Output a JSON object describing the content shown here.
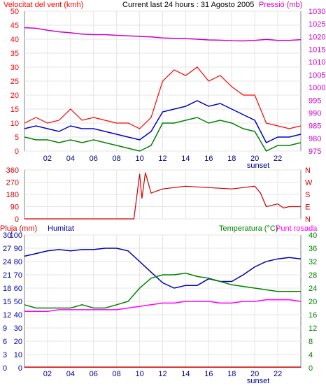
{
  "header": {
    "wind_label": "Velocitat del vent (kmh)",
    "title": "Current last 24 hours : 31 Agosto 2005",
    "pressure_label": "Pressió (mb)"
  },
  "bottom_header": {
    "rain_label": "Pluja (mm)",
    "humidity_label": "Humitat",
    "temp_label": "Temperatura (°C)",
    "dew_label": "Punt rosada"
  },
  "x_ticks": [
    "02",
    "04",
    "06",
    "08",
    "10",
    "12",
    "14",
    "16",
    "18",
    "20",
    "22"
  ],
  "sunset_label": "sunset",
  "colors": {
    "wind": "#ff0000",
    "pressure": "#cc00cc",
    "avg_wind": "#0000cc",
    "min_wind": "#008000",
    "direction": "#cc0000",
    "humidity": "#0000aa",
    "temperature": "#008000",
    "dew": "#ff00ff",
    "rain": "#cc0000",
    "axis": "#808080"
  },
  "chart_data": [
    {
      "type": "line",
      "title": "Current last 24 hours : 31 Agosto 2005",
      "ylabel": "Velocitat del vent (kmh)",
      "ylim": [
        0,
        50
      ],
      "y_ticks": [
        0,
        5,
        10,
        15,
        20,
        25,
        30,
        35,
        40,
        45,
        50
      ],
      "y2label": "Pressió (mb)",
      "y2lim": [
        975,
        1030
      ],
      "y2_ticks": [
        975,
        980,
        985,
        990,
        995,
        1000,
        1005,
        1010,
        1015,
        1020,
        1025,
        1030
      ],
      "x": [
        0,
        1,
        2,
        3,
        4,
        5,
        6,
        7,
        8,
        9,
        10,
        11,
        12,
        13,
        14,
        15,
        16,
        17,
        18,
        19,
        20,
        21,
        22,
        23,
        24
      ],
      "series": [
        {
          "name": "Velocitat del vent (kmh)",
          "axis": "left",
          "values": [
            10,
            12,
            10,
            11,
            15,
            11,
            12,
            11,
            10,
            10,
            8,
            12,
            25,
            29,
            27,
            30,
            25,
            27,
            23,
            20,
            20,
            10,
            9,
            8,
            9
          ]
        },
        {
          "name": "Pressió (mb)",
          "axis": "right",
          "values": [
            1023.5,
            1023.3,
            1022.5,
            1021.9,
            1021.5,
            1021,
            1020.8,
            1020.8,
            1020.5,
            1020.3,
            1020.1,
            1019.9,
            1019.5,
            1019.3,
            1019.2,
            1019,
            1018.7,
            1018.6,
            1018.4,
            1018.3,
            1018.5,
            1018.9,
            1018.5,
            1018.5,
            1018.8
          ]
        },
        {
          "values": [
            8,
            9,
            8,
            7,
            9,
            8,
            8,
            7,
            6,
            5,
            4,
            7,
            14,
            15,
            16,
            18,
            16,
            17,
            15,
            13,
            11,
            3,
            5,
            5,
            6
          ]
        },
        {
          "values": [
            5,
            4,
            4,
            3,
            4,
            3,
            4,
            3,
            2,
            1,
            0,
            2,
            10,
            10,
            11,
            12,
            10,
            11,
            10,
            8,
            7,
            0,
            2,
            2,
            3
          ]
        }
      ],
      "annotations": [
        "sunset"
      ],
      "sunset_x": 20.3
    },
    {
      "type": "line",
      "ylabel_left": [
        "360",
        "270",
        "180",
        "90",
        "0"
      ],
      "ylabel_right": [
        "N",
        "W",
        "S",
        "E",
        "N"
      ],
      "ylim": [
        0,
        360
      ],
      "x": [
        0,
        2,
        4,
        6,
        8,
        9.5,
        10,
        10.2,
        10.5,
        11,
        12,
        14,
        16,
        18,
        20,
        20.5,
        21,
        22,
        22.5,
        23,
        24
      ],
      "series": [
        {
          "values": [
            0,
            0,
            0,
            0,
            0,
            0,
            330,
            150,
            340,
            190,
            220,
            240,
            230,
            220,
            240,
            190,
            90,
            110,
            80,
            90,
            90
          ]
        }
      ]
    },
    {
      "type": "line",
      "ylim": [
        0,
        100
      ],
      "y_ticks": [
        0,
        10,
        20,
        30,
        40,
        50,
        60,
        70,
        80,
        90,
        100
      ],
      "y_ticks_rain": [
        0,
        3,
        6,
        9,
        12,
        15,
        18,
        21,
        24,
        27,
        30
      ],
      "y2lim": [
        0,
        40
      ],
      "y2_ticks": [
        0,
        4,
        8,
        12,
        16,
        20,
        24,
        28,
        32,
        36,
        40
      ],
      "x": [
        0,
        1,
        2,
        3,
        4,
        5,
        6,
        7,
        8,
        9,
        10,
        11,
        12,
        13,
        14,
        15,
        16,
        17,
        18,
        19,
        20,
        21,
        22,
        23,
        24
      ],
      "series": [
        {
          "name": "Humitat",
          "axis": "left",
          "values": [
            84,
            86,
            88,
            89,
            88,
            89,
            89,
            90,
            90,
            88,
            80,
            72,
            64,
            60,
            62,
            62,
            67,
            65,
            65,
            70,
            76,
            80,
            82,
            83,
            82
          ]
        },
        {
          "name": "Temperatura (°C)",
          "axis": "right",
          "values": [
            19,
            18,
            18,
            18,
            18,
            19,
            18,
            18,
            19,
            20,
            24,
            27,
            28,
            28,
            28.5,
            27.5,
            27,
            26,
            25,
            24.5,
            24,
            23.5,
            23,
            23,
            23
          ]
        },
        {
          "name": "Punt rosada",
          "axis": "right",
          "values": [
            17,
            17,
            17,
            17.5,
            17.5,
            17.5,
            17.5,
            17.5,
            17.5,
            18,
            18.5,
            19,
            19.5,
            19.5,
            20,
            20,
            20,
            19.5,
            19.5,
            20,
            20,
            20.5,
            20.5,
            20.5,
            20
          ]
        },
        {
          "name": "Pluja (mm)",
          "axis": "rain",
          "values": [
            0,
            0,
            0,
            0,
            0,
            0,
            0,
            0,
            0,
            0,
            0,
            0,
            0,
            0,
            0,
            0,
            0,
            0,
            0,
            0,
            0,
            0,
            0,
            0,
            0
          ]
        }
      ],
      "annotations": [
        "sunset"
      ],
      "sunset_x": 20.3
    }
  ]
}
